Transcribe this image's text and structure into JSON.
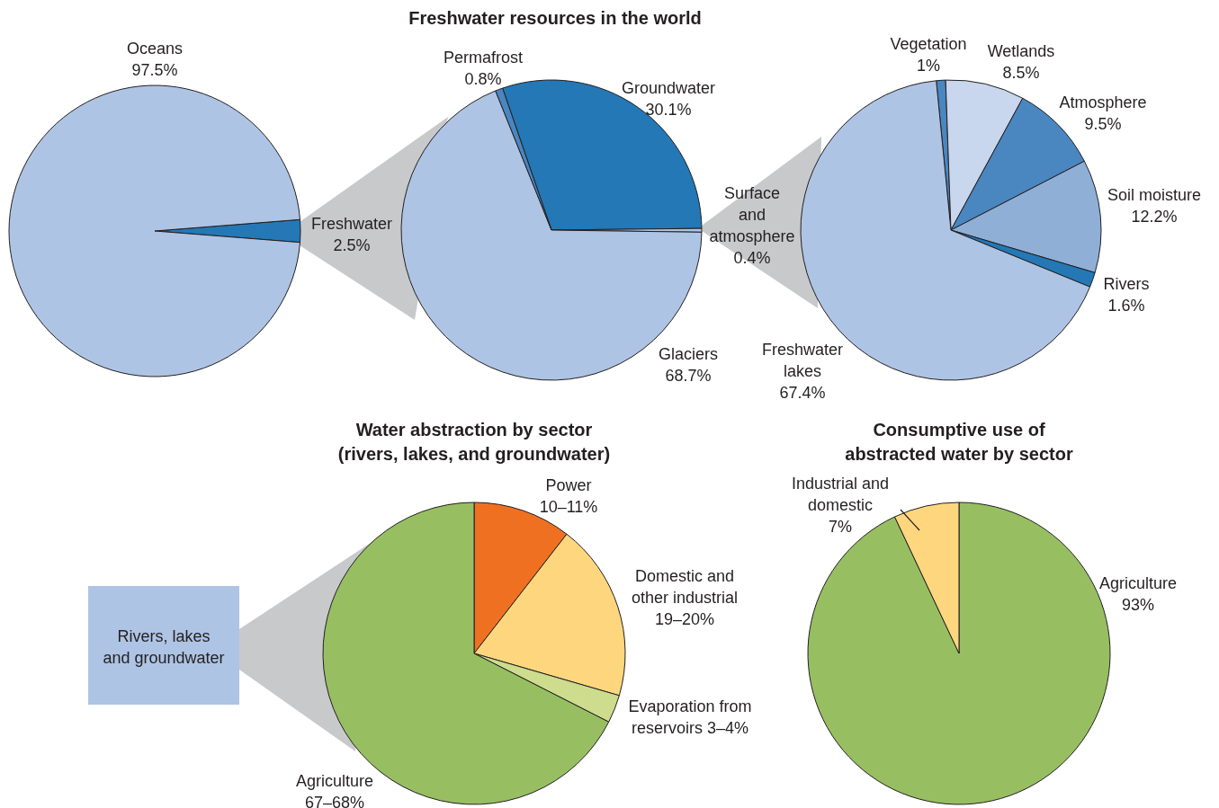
{
  "chart_data": [
    {
      "type": "pie",
      "categories": [
        "Freshwater",
        "Oceans"
      ],
      "values": [
        2.5,
        97.5
      ],
      "value_labels": [
        "2.5%",
        "97.5%"
      ],
      "colors": [
        "#2378b5",
        "#aec4e4"
      ]
    },
    {
      "type": "pie",
      "title": "Freshwater resources in the world",
      "categories": [
        "Groundwater",
        "Surface and atmosphere",
        "Glaciers",
        "Permafrost"
      ],
      "values": [
        30.1,
        0.4,
        68.7,
        0.8
      ],
      "value_labels": [
        "30.1%",
        "0.4%",
        "68.7%",
        "0.8%"
      ],
      "colors": [
        "#2378b5",
        "#aec4e4",
        "#aec4e4",
        "#4a86c0"
      ]
    },
    {
      "type": "pie",
      "categories": [
        "Vegetation",
        "Wetlands",
        "Atmosphere",
        "Soil moisture",
        "Rivers",
        "Freshwater lakes"
      ],
      "values": [
        1,
        8.5,
        9.5,
        12.2,
        1.6,
        67.4
      ],
      "value_labels": [
        "1%",
        "8.5%",
        "9.5%",
        "12.2%",
        "1.6%",
        "67.4%"
      ],
      "colors": [
        "#4a86c0",
        "#c8d6ee",
        "#4a86c0",
        "#8fafd6",
        "#2378b5",
        "#aec4e4"
      ]
    },
    {
      "type": "pie",
      "title": "Water abstraction by sector",
      "subtitle": "(rivers, lakes, and groundwater)",
      "categories": [
        "Power",
        "Domestic and other industrial",
        "Evaporation from reservoirs",
        "Agriculture"
      ],
      "values": [
        10.5,
        19,
        3,
        67.5
      ],
      "value_labels": [
        "10–11%",
        "19–20%",
        "3–4%",
        "67–68%"
      ],
      "colors": [
        "#f07022",
        "#fdd67e",
        "#cddc8d",
        "#97bf62"
      ],
      "annotations": [
        "Rivers, lakes and groundwater"
      ]
    },
    {
      "type": "pie",
      "title": "Consumptive use of abstracted water by sector",
      "categories": [
        "Agriculture",
        "Industrial and domestic"
      ],
      "values": [
        93,
        7
      ],
      "value_labels": [
        "93%",
        "7%"
      ],
      "colors": [
        "#97bf62",
        "#fdd67e"
      ]
    }
  ]
}
